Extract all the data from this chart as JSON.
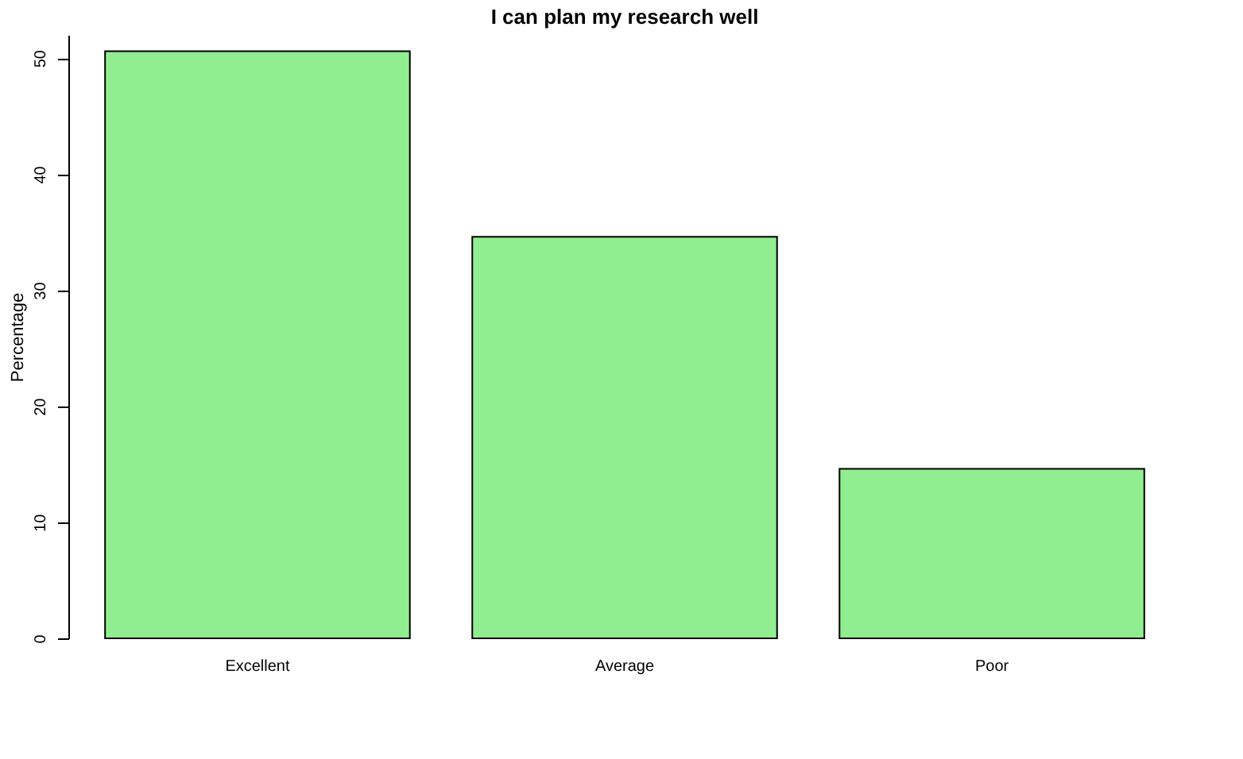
{
  "chart_data": {
    "type": "bar",
    "title": "I can plan my research well",
    "ylabel": "Percentage",
    "categories": [
      "Excellent",
      "Average",
      "Poor"
    ],
    "values": [
      50.6,
      34.6,
      14.6
    ],
    "color": "#90ee90",
    "ylim": [
      0,
      52
    ],
    "yticks": [
      0,
      10,
      20,
      30,
      40,
      50
    ],
    "grid": false
  }
}
